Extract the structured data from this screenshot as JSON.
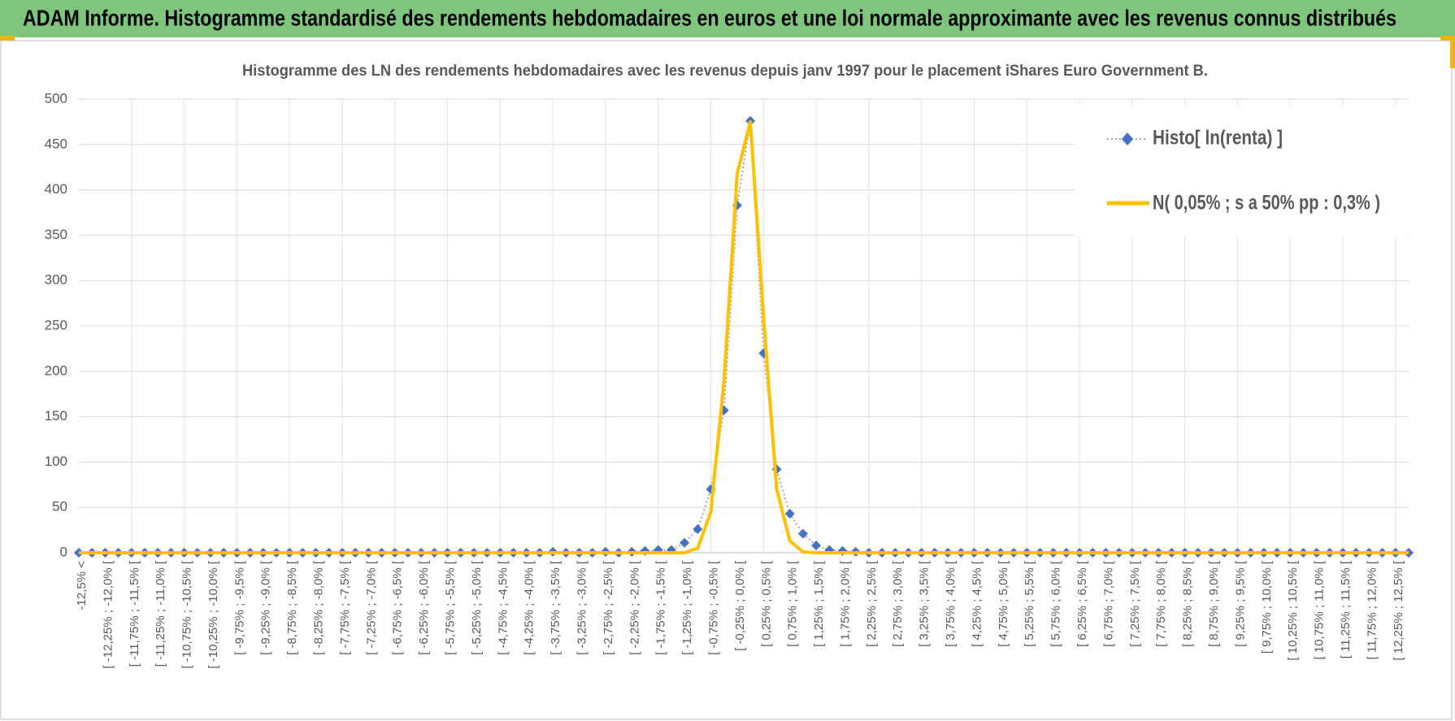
{
  "header": {
    "title": "ADAM Informe. Histogramme standardisé des rendements hebdomadaires en euros et une loi normale approximante avec les revenus connus distribués"
  },
  "chart_data": {
    "type": "line",
    "title": "Histogramme des LN des rendements hebdomadaires avec les revenus depuis janv 1997 pour le placement iShares Euro Government B.",
    "categories": [
      "-12,5% <",
      null,
      "[ -12,25% ; -12,0% [",
      null,
      "[ -11,75% ; -11,5% [",
      null,
      "[ -11,25% ; -11,0% [",
      null,
      "[ -10,75% ; -10,5% [",
      null,
      "[ -10,25% ; -10,0% [",
      null,
      "[ -9,75% ; -9,5% [",
      null,
      "[ -9,25% ; -9,0% [",
      null,
      "[ -8,75% ; -8,5% [",
      null,
      "[ -8,25% ; -8,0% [",
      null,
      "[ -7,75% ; -7,5% [",
      null,
      "[ -7,25% ; -7,0% [",
      null,
      "[ -6,75% ; -6,5% [",
      null,
      "[ -6,25% ; -6,0% [",
      null,
      "[ -5,75% ; -5,5% [",
      null,
      "[ -5,25% ; -5,0% [",
      null,
      "[ -4,75% ; -4,5% [",
      null,
      "[ -4,25% ; -4,0% [",
      null,
      "[ -3,75% ; -3,5% [",
      null,
      "[ -3,25% ; -3,0% [",
      null,
      "[ -2,75% ; -2,5% [",
      null,
      "[ -2,25% ; -2,0% [",
      null,
      "[ -1,75% ; -1,5% [",
      null,
      "[ -1,25% ; -1,0% [",
      null,
      "[ -0,75% ; -0,5% [",
      null,
      "[ -0,25% ; 0,0% [",
      null,
      "[ 0,25% ; 0,5% [",
      null,
      "[ 0,75% ; 1,0% [",
      null,
      "[ 1,25% ; 1,5% [",
      null,
      "[ 1,75% ; 2,0% [",
      null,
      "[ 2,25% ; 2,5% [",
      null,
      "[ 2,75% ; 3,0% [",
      null,
      "[ 3,25% ; 3,5% [",
      null,
      "[ 3,75% ; 4,0% [",
      null,
      "[ 4,25% ; 4,5% [",
      null,
      "[ 4,75% ; 5,0% [",
      null,
      "[ 5,25% ; 5,5% [",
      null,
      "[ 5,75% ; 6,0% [",
      null,
      "[ 6,25% ; 6,5% [",
      null,
      "[ 6,75% ; 7,0% [",
      null,
      "[ 7,25% ; 7,5% [",
      null,
      "[ 7,75% ; 8,0% [",
      null,
      "[ 8,25% ; 8,5% [",
      null,
      "[ 8,75% ; 9,0% [",
      null,
      "[ 9,25% ; 9,5% [",
      null,
      "[ 9,75% ; 10,0% [",
      null,
      "[ 10,25% ; 10,5% [",
      null,
      "[ 10,75% ; 11,0% [",
      null,
      "[ 11,25% ; 11,5% [",
      null,
      "[ 11,75% ; 12,0% [",
      null,
      "[ 12,25% ; 12,5% [",
      null
    ],
    "series": [
      {
        "name": "Histo[ ln(renta) ]",
        "color": "#4472c4",
        "values": [
          0,
          0,
          0,
          0,
          0,
          0,
          0,
          0,
          0,
          0,
          0,
          0,
          0,
          0,
          0,
          0,
          0,
          0,
          0,
          0,
          0,
          0,
          0,
          0,
          0,
          0,
          0,
          0,
          0,
          0,
          0,
          0,
          0,
          0,
          0,
          0,
          1,
          0,
          0,
          0,
          1,
          0,
          1,
          2,
          3,
          3,
          11,
          26,
          70,
          157,
          383,
          476,
          220,
          92,
          43,
          21,
          8,
          3,
          2,
          1,
          0,
          0,
          0,
          0,
          0,
          0,
          0,
          0,
          0,
          0,
          0,
          0,
          0,
          0,
          0,
          0,
          0,
          0,
          0,
          0,
          0,
          0,
          0,
          0,
          0,
          0,
          0,
          0,
          0,
          0,
          0,
          0,
          0,
          0,
          0,
          0,
          0,
          0,
          0,
          0,
          0,
          0
        ]
      },
      {
        "name": "N( 0,05% ; s a 50% pp : 0,3% )",
        "color": "#ffc000",
        "values": [
          0,
          0,
          0,
          0,
          0,
          0,
          0,
          0,
          0,
          0,
          0,
          0,
          0,
          0,
          0,
          0,
          0,
          0,
          0,
          0,
          0,
          0,
          0,
          0,
          0,
          0,
          0,
          0,
          0,
          0,
          0,
          0,
          0,
          0,
          0,
          0,
          0,
          0,
          0,
          0,
          0,
          0,
          0,
          0,
          0,
          0,
          0,
          5,
          45,
          190,
          418,
          475,
          260,
          70,
          13,
          1,
          0,
          0,
          0,
          0,
          0,
          0,
          0,
          0,
          0,
          0,
          0,
          0,
          0,
          0,
          0,
          0,
          0,
          0,
          0,
          0,
          0,
          0,
          0,
          0,
          0,
          0,
          0,
          0,
          0,
          0,
          0,
          0,
          0,
          0,
          0,
          0,
          0,
          0,
          0,
          0,
          0,
          0,
          0,
          0,
          0,
          0
        ]
      }
    ],
    "ylim": [
      0,
      500
    ],
    "yticks": [
      0,
      50,
      100,
      150,
      200,
      250,
      300,
      350,
      400,
      450,
      500
    ],
    "grid": true,
    "legend": "upper right"
  }
}
